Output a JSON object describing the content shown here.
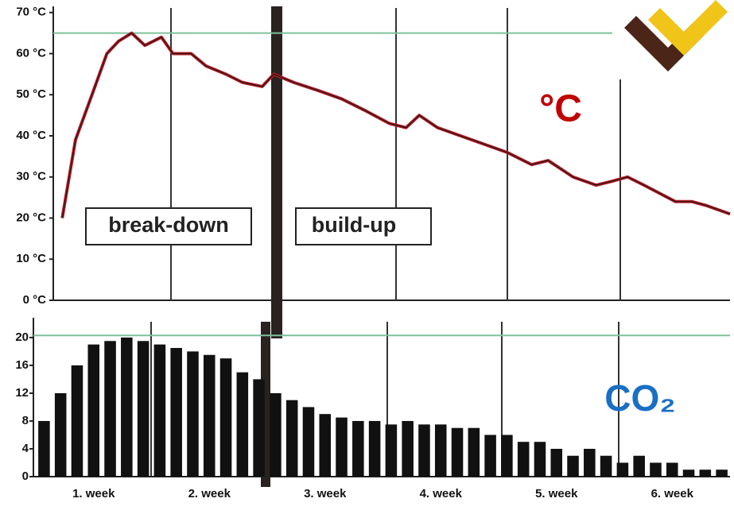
{
  "chart_data": [
    {
      "type": "line",
      "x": [
        1.6,
        2.4,
        3.4,
        4.3,
        5,
        5.8,
        6.6,
        7.6,
        8.3,
        9.4,
        10.3,
        11.5,
        12.5,
        13.7,
        14.4,
        15.6,
        17.1,
        18.5,
        20,
        21.4,
        22.4,
        23.2,
        24.3,
        25.7,
        27.1,
        28.5,
        30,
        31,
        32.5,
        33.9,
        34.9,
        35.8,
        36.8,
        38.7,
        39.7,
        40.6,
        42
      ],
      "series": [
        {
          "color": "#b0202a",
          "values": [
            20,
            39,
            50,
            60,
            63,
            65,
            62,
            64,
            60,
            60,
            57,
            55,
            53,
            52,
            55,
            53,
            51,
            49,
            46,
            43,
            42,
            45,
            42,
            40,
            38,
            36,
            33,
            34,
            30,
            28,
            29,
            30,
            28,
            24,
            24,
            23,
            21
          ]
        }
      ],
      "reference_line": 65,
      "reference_color": "#7fc09a",
      "xlim": [
        0,
        42
      ],
      "ylim": [
        0,
        71.5
      ],
      "yticks": [
        {
          "value": 0,
          "label": "0 °C"
        },
        {
          "value": 10,
          "label": "10 °C"
        },
        {
          "value": 20,
          "label": "20 °C"
        },
        {
          "value": 30,
          "label": "30 °C"
        },
        {
          "value": 40,
          "label": "40 °C"
        },
        {
          "value": 50,
          "label": "50 °C"
        },
        {
          "value": 60,
          "label": "60 °C"
        },
        {
          "value": 70,
          "label": "70 °C"
        }
      ],
      "annotations": [
        "break-down",
        "build-up"
      ],
      "unit_label": "°C"
    },
    {
      "type": "bar",
      "color": "#111111",
      "values": [
        8,
        12,
        16,
        19,
        19.5,
        20,
        19.5,
        19,
        18.5,
        18,
        17.5,
        17,
        15,
        14,
        12,
        11,
        10,
        9,
        8.5,
        8,
        8,
        7.5,
        8,
        7.5,
        7.5,
        7,
        7,
        6,
        6,
        5,
        5,
        4,
        3,
        4,
        3,
        2,
        3,
        2,
        2,
        1,
        1,
        1
      ],
      "reference_line": 20.3,
      "reference_color": "#7fc09a",
      "xlim": [
        0,
        42
      ],
      "ylim": [
        0,
        22.5
      ],
      "xticks": [
        {
          "value": 3.5,
          "label": "1. week"
        },
        {
          "value": 10.5,
          "label": "2. week"
        },
        {
          "value": 17.5,
          "label": "3. week"
        },
        {
          "value": 24.5,
          "label": "4. week"
        },
        {
          "value": 31.5,
          "label": "5. week"
        },
        {
          "value": 38.5,
          "label": "6. week"
        }
      ],
      "yticks": [
        0,
        4,
        8,
        12,
        16,
        20
      ],
      "unit_label": "CO₂"
    }
  ]
}
